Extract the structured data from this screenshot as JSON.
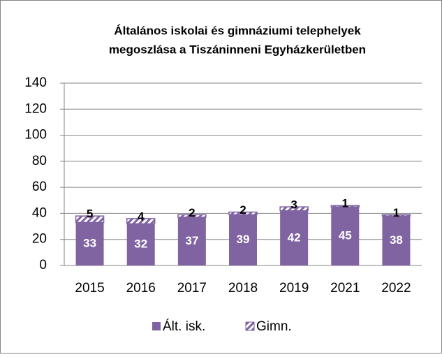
{
  "chart_data": {
    "type": "stacked_bar",
    "title": [
      "Általános iskolai és gimnáziumi telephelyek",
      "megoszlása a Tiszáninneni Egyházkerületben"
    ],
    "categories": [
      "2015",
      "2016",
      "2017",
      "2018",
      "2019",
      "2021",
      "2022"
    ],
    "series": [
      {
        "name": "Ált. isk.",
        "color": "#8064a2",
        "values": [
          33,
          32,
          37,
          39,
          42,
          45,
          38
        ]
      },
      {
        "name": "Gimn.",
        "color": "#8064a2",
        "pattern": "diagonal",
        "values": [
          5,
          4,
          2,
          2,
          3,
          1,
          1
        ]
      }
    ],
    "ylim": [
      0,
      140
    ],
    "yticks": [
      0,
      20,
      40,
      60,
      80,
      100,
      120,
      140
    ],
    "grid": true,
    "legend": "bottom"
  }
}
